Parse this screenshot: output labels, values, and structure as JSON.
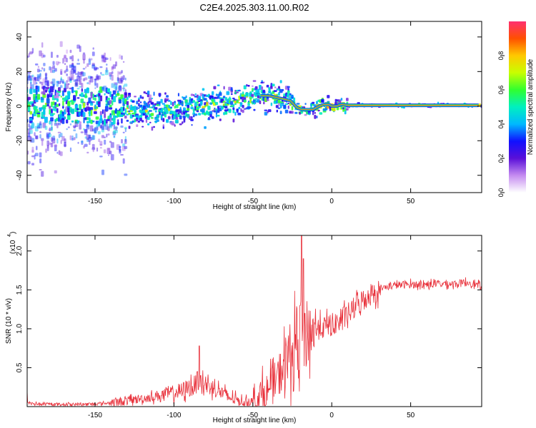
{
  "title": "C2E4.2025.303.11.00.R02",
  "chart_data": [
    {
      "type": "heatmap",
      "xlabel": "Height of straight line (km)",
      "ylabel": "Frequency (Hz)",
      "xlim": [
        -193,
        95
      ],
      "ylim": [
        -50,
        49
      ],
      "xticks": [
        -150,
        -100,
        -50,
        0,
        50
      ],
      "yticks": [
        -40,
        -20,
        0,
        20,
        40
      ],
      "ridge": {
        "x": [
          -190,
          -175,
          -160,
          -150,
          -140,
          -130,
          -120,
          -110,
          -100,
          -90,
          -80,
          -70,
          -60,
          -50,
          -45,
          -40,
          -35,
          -30,
          -26,
          -22,
          -19,
          -16,
          -12,
          -8,
          -5,
          -2,
          0,
          3,
          6,
          10,
          20,
          40,
          60,
          80,
          93
        ],
        "y": [
          1,
          1,
          0,
          0,
          0,
          -2,
          -3,
          -3,
          -2,
          -1,
          0,
          1,
          3,
          5,
          6,
          6,
          5,
          4,
          3,
          -1,
          -2,
          -2,
          -2,
          0,
          1,
          1,
          0,
          0,
          1,
          0.5,
          0.5,
          0.5,
          0.5,
          0.5,
          0.5
        ]
      },
      "colorbar": {
        "label": "Normalized spectral amplitude",
        "range": [
          0,
          1
        ],
        "ticks": [
          "0.0",
          "0.2",
          "0.4",
          "0.6",
          "0.8"
        ]
      }
    },
    {
      "type": "line",
      "xlabel": "Height of straight line (km)",
      "ylabel": "SNR (10 * v/v)",
      "scale_label": "(x10",
      "scale_exp": "4",
      "xlim": [
        -193,
        95
      ],
      "ylim": [
        0,
        2.2
      ],
      "xticks": [
        -150,
        -100,
        -50,
        0,
        50
      ],
      "yticks": [
        "0.5",
        "1.0",
        "1.5",
        "2.0"
      ],
      "color": "#e8303a",
      "series": [
        {
          "name": "SNR",
          "x": [
            -193,
            -185,
            -175,
            -165,
            -155,
            -145,
            -135,
            -125,
            -115,
            -105,
            -95,
            -90,
            -85,
            -80,
            -75,
            -70,
            -65,
            -60,
            -55,
            -50,
            -45,
            -40,
            -35,
            -30,
            -25,
            -20,
            -15,
            -10,
            -5,
            0,
            5,
            10,
            15,
            20,
            25,
            30,
            35,
            40,
            50,
            60,
            70,
            80,
            88,
            93
          ],
          "y": [
            0.05,
            0.03,
            0.03,
            0.03,
            0.03,
            0.04,
            0.06,
            0.09,
            0.12,
            0.16,
            0.2,
            0.25,
            0.28,
            0.28,
            0.24,
            0.18,
            0.12,
            0.08,
            0.06,
            0.07,
            0.12,
            0.2,
            0.35,
            0.55,
            0.72,
            0.85,
            0.95,
            1.0,
            1.02,
            1.05,
            1.1,
            1.18,
            1.28,
            1.38,
            1.45,
            1.5,
            1.54,
            1.56,
            1.57,
            1.57,
            1.58,
            1.58,
            1.6,
            1.55
          ]
        }
      ],
      "spikes": {
        "x": [
          -193,
          -85,
          -84,
          -83,
          -20,
          -19,
          -18,
          -17
        ],
        "y": [
          0.2,
          0.45,
          0.78,
          0.4,
          1.3,
          2.2,
          1.9,
          1.2
        ]
      }
    }
  ]
}
